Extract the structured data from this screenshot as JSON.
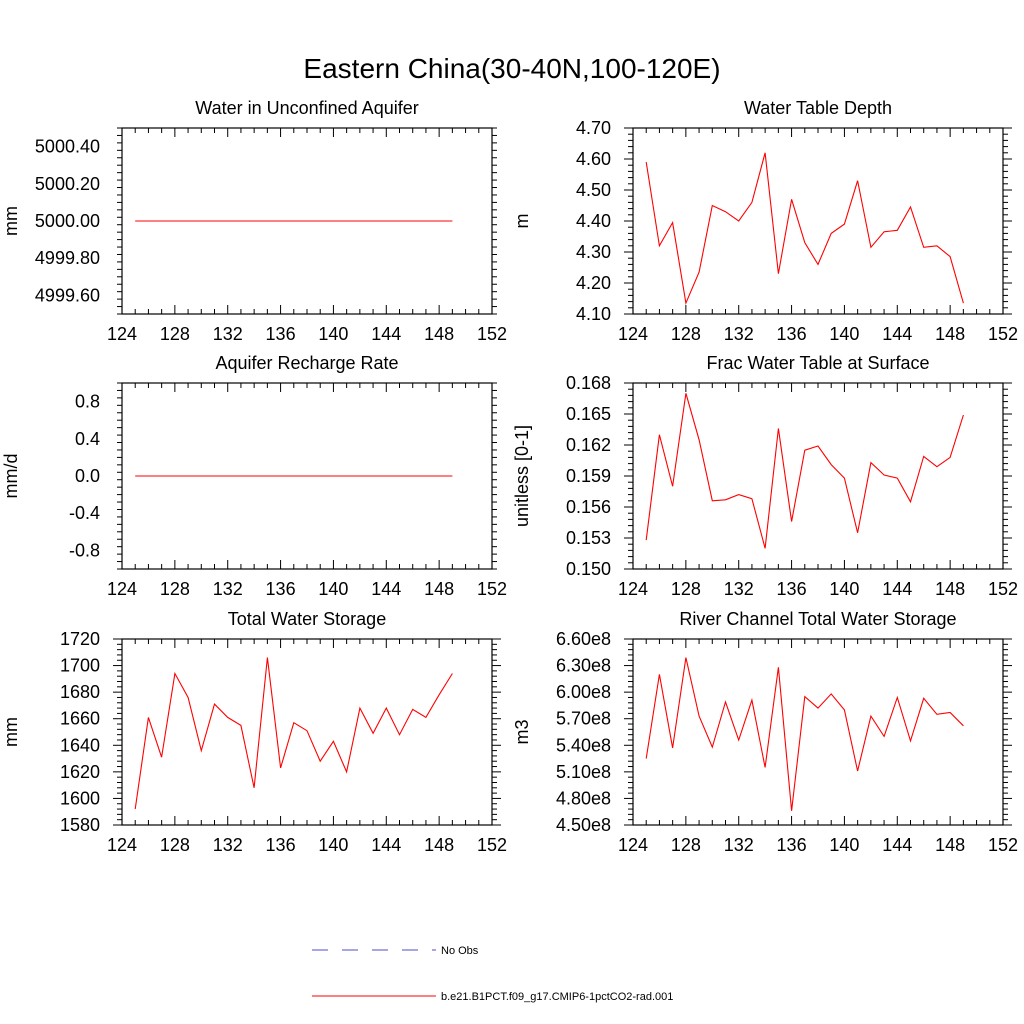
{
  "figure": {
    "title": "Eastern China(30-40N,100-120E)",
    "legend": [
      {
        "label": "No Obs",
        "color": "#4d4dcc",
        "dash": "dashed"
      },
      {
        "label": "b.e21.B1PCT.f09_g17.CMIP6-1pctCO2-rad.001",
        "color": "#ff0000",
        "dash": "solid"
      }
    ]
  },
  "chart_data": [
    {
      "type": "line",
      "title": "Water in Unconfined Aquifer",
      "xlabel": "",
      "ylabel": "mm",
      "xlim": [
        124,
        152
      ],
      "ylim": [
        4999.5,
        5000.5
      ],
      "xticks": [
        124,
        128,
        132,
        136,
        140,
        144,
        148,
        152
      ],
      "yticks": [
        4999.6,
        4999.8,
        5000.0,
        5000.2,
        5000.4
      ],
      "ytick_labels": [
        "4999.60",
        "4999.80",
        "5000.00",
        "5000.20",
        "5000.40"
      ],
      "series": [
        {
          "color": "#ff0000",
          "x": [
            125,
            126,
            127,
            128,
            129,
            130,
            131,
            132,
            133,
            134,
            135,
            136,
            137,
            138,
            139,
            140,
            141,
            142,
            143,
            144,
            145,
            146,
            147,
            148,
            149
          ],
          "y": [
            5000,
            5000,
            5000,
            5000,
            5000,
            5000,
            5000,
            5000,
            5000,
            5000,
            5000,
            5000,
            5000,
            5000,
            5000,
            5000,
            5000,
            5000,
            5000,
            5000,
            5000,
            5000,
            5000,
            5000,
            5000
          ]
        }
      ]
    },
    {
      "type": "line",
      "title": "Water Table Depth",
      "xlabel": "",
      "ylabel": "m",
      "xlim": [
        124,
        152
      ],
      "ylim": [
        4.1,
        4.7
      ],
      "xticks": [
        124,
        128,
        132,
        136,
        140,
        144,
        148,
        152
      ],
      "yticks": [
        4.1,
        4.2,
        4.3,
        4.4,
        4.5,
        4.6,
        4.7
      ],
      "ytick_labels": [
        "4.10",
        "4.20",
        "4.30",
        "4.40",
        "4.50",
        "4.60",
        "4.70"
      ],
      "series": [
        {
          "color": "#ff0000",
          "x": [
            125,
            126,
            127,
            128,
            129,
            130,
            131,
            132,
            133,
            134,
            135,
            136,
            137,
            138,
            139,
            140,
            141,
            142,
            143,
            144,
            145,
            146,
            147,
            148,
            149
          ],
          "y": [
            4.59,
            4.32,
            4.395,
            4.135,
            4.235,
            4.45,
            4.43,
            4.4,
            4.46,
            4.62,
            4.23,
            4.47,
            4.33,
            4.26,
            4.36,
            4.39,
            4.53,
            4.315,
            4.365,
            4.37,
            4.445,
            4.315,
            4.32,
            4.285,
            4.135
          ]
        }
      ]
    },
    {
      "type": "line",
      "title": "Aquifer Recharge Rate",
      "xlabel": "",
      "ylabel": "mm/d",
      "xlim": [
        124,
        152
      ],
      "ylim": [
        -1.0,
        1.0
      ],
      "xticks": [
        124,
        128,
        132,
        136,
        140,
        144,
        148,
        152
      ],
      "yticks": [
        -0.8,
        -0.4,
        0.0,
        0.4,
        0.8
      ],
      "ytick_labels": [
        "-0.8",
        "-0.4",
        "0.0",
        "0.4",
        "0.8"
      ],
      "series": [
        {
          "color": "#ff0000",
          "x": [
            125,
            126,
            127,
            128,
            129,
            130,
            131,
            132,
            133,
            134,
            135,
            136,
            137,
            138,
            139,
            140,
            141,
            142,
            143,
            144,
            145,
            146,
            147,
            148,
            149
          ],
          "y": [
            0,
            0,
            0,
            0,
            0,
            0,
            0,
            0,
            0,
            0,
            0,
            0,
            0,
            0,
            0,
            0,
            0,
            0,
            0,
            0,
            0,
            0,
            0,
            0,
            0
          ]
        }
      ]
    },
    {
      "type": "line",
      "title": "Frac Water Table at Surface",
      "xlabel": "",
      "ylabel": "unitless [0-1]",
      "xlim": [
        124,
        152
      ],
      "ylim": [
        0.15,
        0.168
      ],
      "xticks": [
        124,
        128,
        132,
        136,
        140,
        144,
        148,
        152
      ],
      "yticks": [
        0.15,
        0.153,
        0.156,
        0.159,
        0.162,
        0.165,
        0.168
      ],
      "ytick_labels": [
        "0.150",
        "0.153",
        "0.156",
        "0.159",
        "0.162",
        "0.165",
        "0.168"
      ],
      "series": [
        {
          "color": "#ff0000",
          "x": [
            125,
            126,
            127,
            128,
            129,
            130,
            131,
            132,
            133,
            134,
            135,
            136,
            137,
            138,
            139,
            140,
            141,
            142,
            143,
            144,
            145,
            146,
            147,
            148,
            149
          ],
          "y": [
            0.1528,
            0.163,
            0.158,
            0.167,
            0.1625,
            0.1566,
            0.1567,
            0.1572,
            0.1568,
            0.152,
            0.1636,
            0.1546,
            0.1615,
            0.1619,
            0.1601,
            0.1588,
            0.1535,
            0.1603,
            0.1591,
            0.1588,
            0.1565,
            0.1609,
            0.1599,
            0.1608,
            0.1649
          ]
        }
      ]
    },
    {
      "type": "line",
      "title": "Total Water Storage",
      "xlabel": "",
      "ylabel": "mm",
      "xlim": [
        124,
        152
      ],
      "ylim": [
        1580,
        1720
      ],
      "xticks": [
        124,
        128,
        132,
        136,
        140,
        144,
        148,
        152
      ],
      "yticks": [
        1580,
        1600,
        1620,
        1640,
        1660,
        1680,
        1700,
        1720
      ],
      "ytick_labels": [
        "1580",
        "1600",
        "1620",
        "1640",
        "1660",
        "1680",
        "1700",
        "1720"
      ],
      "series": [
        {
          "color": "#ff0000",
          "x": [
            125,
            126,
            127,
            128,
            129,
            130,
            131,
            132,
            133,
            134,
            135,
            136,
            137,
            138,
            139,
            140,
            141,
            142,
            143,
            144,
            145,
            146,
            147,
            148,
            149
          ],
          "y": [
            1592,
            1661,
            1631,
            1694,
            1676,
            1636,
            1671,
            1661,
            1655,
            1608,
            1706,
            1623,
            1657,
            1651,
            1628,
            1643,
            1620,
            1668,
            1649,
            1668,
            1648,
            1667,
            1661,
            1678,
            1694
          ]
        }
      ]
    },
    {
      "type": "line",
      "title": "River Channel Total Water Storage",
      "xlabel": "",
      "ylabel": "m3",
      "xlim": [
        124,
        152
      ],
      "ylim": [
        450000000.0,
        660000000.0
      ],
      "xticks": [
        124,
        128,
        132,
        136,
        140,
        144,
        148,
        152
      ],
      "yticks": [
        450000000.0,
        480000000.0,
        510000000.0,
        540000000.0,
        570000000.0,
        600000000.0,
        630000000.0,
        660000000.0
      ],
      "ytick_labels": [
        "4.50e8",
        "4.80e8",
        "5.10e8",
        "5.40e8",
        "5.70e8",
        "6.00e8",
        "6.30e8",
        "6.60e8"
      ],
      "series": [
        {
          "color": "#ff0000",
          "x": [
            125,
            126,
            127,
            128,
            129,
            130,
            131,
            132,
            133,
            134,
            135,
            136,
            137,
            138,
            139,
            140,
            141,
            142,
            143,
            144,
            145,
            146,
            147,
            148,
            149
          ],
          "y": [
            525000000.0,
            620000000.0,
            537000000.0,
            639000000.0,
            573000000.0,
            538000000.0,
            589000000.0,
            546000000.0,
            591000000.0,
            515000000.0,
            628000000.0,
            466000000.0,
            595000000.0,
            582000000.0,
            598000000.0,
            580000000.0,
            511000000.0,
            573000000.0,
            550000000.0,
            594000000.0,
            545000000.0,
            593000000.0,
            575000000.0,
            577000000.0,
            562000000.0
          ]
        }
      ]
    }
  ]
}
